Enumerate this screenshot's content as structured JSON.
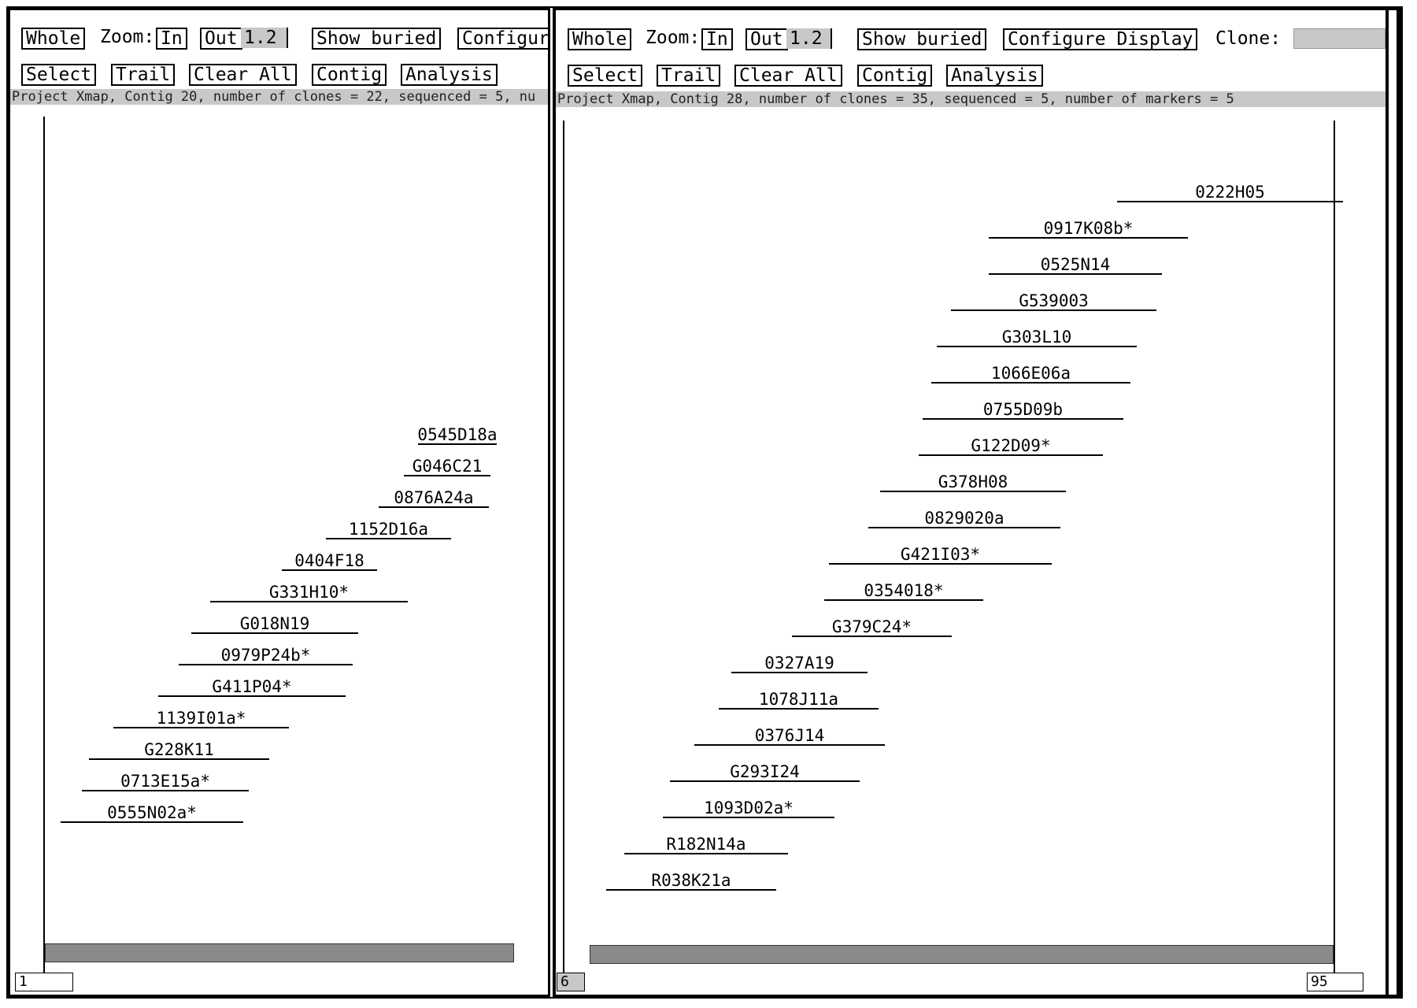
{
  "left": {
    "toolbar": {
      "whole": "Whole",
      "zoom_label": "Zoom:",
      "zoom_in": "In",
      "zoom_out": "Out",
      "zoom_value": "1.2",
      "show_buried": "Show buried",
      "configure": "Configur",
      "select": "Select",
      "trail": "Trail",
      "clear_all": "Clear All",
      "contig": "Contig",
      "analysis": "Analysis"
    },
    "status": "Project Xmap, Contig 20, number of clones = 22, sequenced = 5, nu",
    "position_start": "1",
    "clones": [
      {
        "name": "0545D18a"
      },
      {
        "name": "G046C21"
      },
      {
        "name": "0876A24a"
      },
      {
        "name": "1152D16a"
      },
      {
        "name": "0404F18"
      },
      {
        "name": "G331H10*"
      },
      {
        "name": "G018N19"
      },
      {
        "name": "0979P24b*"
      },
      {
        "name": "G411P04*"
      },
      {
        "name": "1139I01a*"
      },
      {
        "name": "G228K11"
      },
      {
        "name": "0713E15a*"
      },
      {
        "name": "0555N02a*"
      }
    ]
  },
  "right": {
    "toolbar": {
      "whole": "Whole",
      "zoom_label": "Zoom:",
      "zoom_in": "In",
      "zoom_out": "Out",
      "zoom_value": "1.2",
      "show_buried": "Show buried",
      "configure": "Configure Display",
      "clone_label": "Clone:",
      "select": "Select",
      "trail": "Trail",
      "clear_all": "Clear All",
      "contig": "Contig",
      "analysis": "Analysis"
    },
    "status": "Project Xmap, Contig 28, number of clones = 35, sequenced = 5, number of markers = 5",
    "position_start": "6",
    "position_end": "95",
    "clones": [
      {
        "name": "0222H05"
      },
      {
        "name": "0917K08b*"
      },
      {
        "name": "0525N14"
      },
      {
        "name": "G539003"
      },
      {
        "name": "G303L10"
      },
      {
        "name": "1066E06a"
      },
      {
        "name": "0755D09b"
      },
      {
        "name": "G122D09*"
      },
      {
        "name": "G378H08"
      },
      {
        "name": "0829020a"
      },
      {
        "name": "G421I03*"
      },
      {
        "name": "0354018*"
      },
      {
        "name": "G379C24*"
      },
      {
        "name": "0327A19"
      },
      {
        "name": "1078J11a"
      },
      {
        "name": "0376J14"
      },
      {
        "name": "G293I24"
      },
      {
        "name": "1093D02a*"
      },
      {
        "name": "R182N14a"
      },
      {
        "name": "R038K21a"
      }
    ]
  }
}
